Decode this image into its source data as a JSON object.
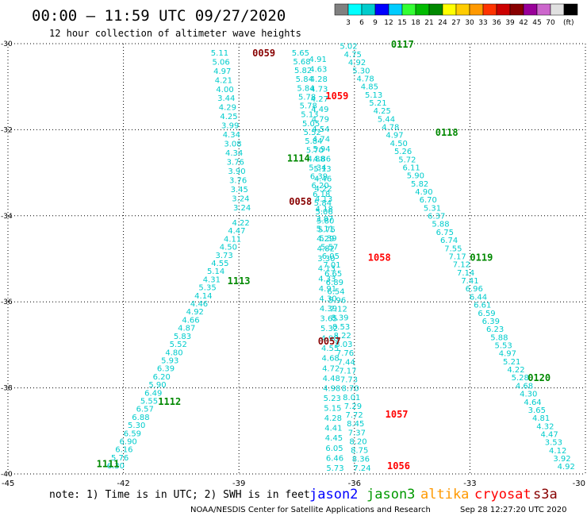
{
  "header": {
    "title": "00:00 – 11:59 UTC 09/27/2020",
    "subtitle": "12 hour collection of altimeter wave heights"
  },
  "colorbar": {
    "swatches": [
      "#808080",
      "#00ffff",
      "#00cccc",
      "#0000ff",
      "#00ccff",
      "#33ff33",
      "#00bb00",
      "#008800",
      "#ffff00",
      "#ffcc00",
      "#ff9900",
      "#ff3300",
      "#cc0000",
      "#880000",
      "#990099",
      "#cc66cc",
      "#e0e0e0",
      "#000000"
    ],
    "ticks": [
      "3",
      "6",
      "9",
      "12",
      "15",
      "18",
      "21",
      "24",
      "27",
      "30",
      "33",
      "36",
      "39",
      "42",
      "45",
      "70"
    ],
    "unit": "(ft)"
  },
  "footer": {
    "note": "note: 1) Time is in UTC; 2) SWH is in feet",
    "credit": "NOAA/NESDIS Center for Satellite Applications and Research",
    "timestamp": "Sep 28 12:27:20 UTC 2020",
    "satellites": [
      {
        "name": "jason2",
        "color": "#0000ff"
      },
      {
        "name": "jason3",
        "color": "#009900"
      },
      {
        "name": "altika",
        "color": "#ff9900"
      },
      {
        "name": "cryosat",
        "color": "#ff0000"
      },
      {
        "name": "s3a",
        "color": "#880000"
      }
    ]
  },
  "map": {
    "lon_range": [
      -45,
      -30
    ],
    "lat_range": [
      -40,
      -30
    ],
    "x_ticks": [
      -45,
      -42,
      -39,
      -36,
      -33,
      -30
    ],
    "y_ticks": [
      -30,
      -32,
      -34,
      -36,
      -38,
      -40
    ],
    "grid": true
  },
  "chart_data": {
    "type": "scatter",
    "point_color": "#00cccc",
    "tracks": [
      {
        "values": [
          "5.11",
          "5.06",
          "4.97",
          "4.21",
          "4.00",
          "3.44",
          "4.29",
          "4.25",
          "3.99",
          "4.34",
          "3.08",
          "4.34",
          "3.76",
          "3.90",
          "3.76",
          "3.45",
          "3.24",
          "3.24"
        ],
        "start": [
          -39.5,
          -30.2
        ],
        "end": [
          -38.92,
          -33.8
        ]
      },
      {
        "values": [
          "4.22",
          "4.47",
          "4.11",
          "4.50",
          "3.73",
          "4.55",
          "5.14",
          "4.31",
          "5.35",
          "4.14",
          "4.46",
          "4.92",
          "4.66",
          "4.87",
          "5.83",
          "5.52",
          "4.80",
          "5.93",
          "6.39",
          "6.20",
          "5.90",
          "6.49",
          "5.55",
          "6.57",
          "6.88",
          "5.30",
          "6.59",
          "6.90",
          "6.16",
          "5.76",
          "6.30"
        ],
        "start": [
          -38.95,
          -34.15
        ],
        "end": [
          -42.2,
          -39.8
        ]
      },
      {
        "values": [
          "5.65",
          "5.68",
          "5.82",
          "5.84",
          "5.84",
          "5.78",
          "5.78",
          "5.13",
          "5.05",
          "5.52",
          "5.84",
          "5.70",
          "4.88",
          "5.34",
          "6.39",
          "6.20",
          "6.18",
          "5.84",
          "5.06",
          "5.80",
          "5.75",
          "5.39",
          "5.57",
          "6.05",
          "7.01",
          "6.65",
          "6.89",
          "6.54",
          "5.96",
          "7.12",
          "8.39",
          "8.53",
          "8.22",
          "8.03",
          "7.76",
          "7.44",
          "7.17",
          "7.73",
          "8.70",
          "8.01",
          "7.29",
          "7.72",
          "8.45",
          "7.37",
          "8.20",
          "8.75",
          "8.36",
          "7.24"
        ],
        "start": [
          -37.4,
          -30.2
        ],
        "end": [
          -35.8,
          -39.85
        ]
      },
      {
        "values": [
          "4.91",
          "4.63",
          "4.28",
          "4.73",
          "4.27",
          "4.49",
          "4.79",
          "4.54",
          "4.74",
          "5.94",
          "4.86",
          "5.13",
          "4.46",
          "4.22",
          "4.13",
          "4.18",
          "3.87",
          "5.11",
          "4.29",
          "4.82",
          "3.30",
          "4.13",
          "4.33",
          "4.91",
          "4.30",
          "4.39",
          "3.65",
          "5.32",
          "4.98",
          "4.55",
          "4.68",
          "4.72",
          "4.48",
          "4.98",
          "5.23",
          "5.15",
          "4.28",
          "4.41",
          "4.45",
          "6.05",
          "6.46",
          "5.73"
        ],
        "start": [
          -36.95,
          -30.35
        ],
        "end": [
          -36.5,
          -39.85
        ]
      },
      {
        "values": [
          "5.02",
          "4.75",
          "4.92",
          "5.30",
          "4.78",
          "4.85",
          "5.13",
          "5.21",
          "4.25",
          "5.44",
          "4.78",
          "4.97",
          "4.50",
          "5.26",
          "5.72",
          "6.11",
          "5.90",
          "5.82",
          "4.90",
          "6.70",
          "5.31",
          "6.37",
          "5.88",
          "6.75",
          "6.74",
          "7.55",
          "7.17",
          "7.12",
          "7.14",
          "7.41",
          "6.96",
          "6.44",
          "6.61",
          "6.59",
          "6.39",
          "6.23",
          "5.88",
          "5.53",
          "4.97",
          "5.21",
          "4.22",
          "5.28",
          "4.68",
          "4.30",
          "4.64",
          "3.65",
          "4.81",
          "4.32",
          "4.47",
          "3.53",
          "4.12",
          "3.92",
          "4.92"
        ],
        "start": [
          -36.15,
          -30.05
        ],
        "end": [
          -30.5,
          -39.82
        ]
      }
    ],
    "time_labels": [
      {
        "text": "0117",
        "lon": -35.05,
        "lat": -30.0,
        "color": "#008800"
      },
      {
        "text": "0059",
        "lon": -38.65,
        "lat": -30.2,
        "color": "#880000"
      },
      {
        "text": "1059",
        "lon": -36.75,
        "lat": -31.2,
        "color": "#ff0000"
      },
      {
        "text": "0118",
        "lon": -33.9,
        "lat": -32.05,
        "color": "#008800"
      },
      {
        "text": "1114",
        "lon": -37.75,
        "lat": -32.65,
        "color": "#008800"
      },
      {
        "text": "0058",
        "lon": -37.7,
        "lat": -33.65,
        "color": "#880000"
      },
      {
        "text": "1058",
        "lon": -35.65,
        "lat": -34.95,
        "color": "#ff0000"
      },
      {
        "text": "0119",
        "lon": -33.0,
        "lat": -34.95,
        "color": "#008800"
      },
      {
        "text": "1113",
        "lon": -39.3,
        "lat": -35.5,
        "color": "#008800"
      },
      {
        "text": "0057",
        "lon": -36.95,
        "lat": -36.9,
        "color": "#880000"
      },
      {
        "text": "0120",
        "lon": -31.5,
        "lat": -37.75,
        "color": "#008800"
      },
      {
        "text": "1112",
        "lon": -41.1,
        "lat": -38.3,
        "color": "#008800"
      },
      {
        "text": "1057",
        "lon": -35.2,
        "lat": -38.6,
        "color": "#ff0000"
      },
      {
        "text": "1111",
        "lon": -42.7,
        "lat": -39.75,
        "color": "#008800"
      },
      {
        "text": "1056",
        "lon": -35.15,
        "lat": -39.8,
        "color": "#ff0000"
      }
    ]
  }
}
